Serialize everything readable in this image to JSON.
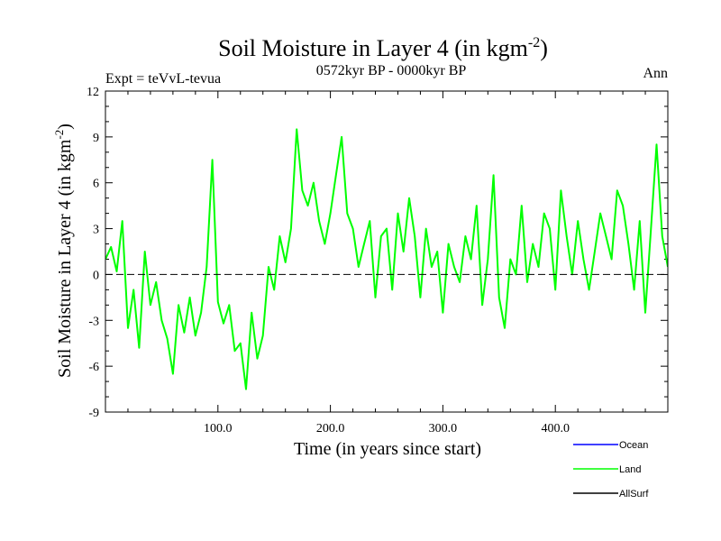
{
  "chart_data": {
    "type": "line",
    "title": "Soil Moisture in Layer 4 (in kgm",
    "title_superscript": "-2",
    "title_close": ")",
    "subtitle_left": "Expt = teVvL-tevua",
    "subtitle_center": "0572kyr BP - 0000kyr BP",
    "subtitle_right": "Ann",
    "xlabel": "Time (in years since start)",
    "ylabel": "Soil Moisture in Layer 4 (in kgm",
    "ylabel_superscript": "-2",
    "ylabel_close": ")",
    "xlim": [
      0,
      500
    ],
    "ylim": [
      -9,
      12
    ],
    "x_ticks": [
      100,
      200,
      300,
      400
    ],
    "x_tick_labels": [
      "100.0",
      "200.0",
      "300.0",
      "400.0"
    ],
    "y_ticks": [
      -9,
      -6,
      -3,
      0,
      3,
      6,
      9,
      12
    ],
    "y_tick_labels": [
      "-9",
      "-6",
      "-3",
      "0",
      "3",
      "6",
      "9",
      "12"
    ],
    "reference_line": 0,
    "legend": [
      {
        "name": "Ocean",
        "color": "#0000ff"
      },
      {
        "name": "Land",
        "color": "#00ff00"
      },
      {
        "name": "AllSurf",
        "color": "#000000"
      }
    ],
    "series": [
      {
        "name": "Land",
        "color": "#00ff00",
        "x": [
          0,
          5,
          10,
          15,
          20,
          25,
          30,
          35,
          40,
          45,
          50,
          55,
          60,
          65,
          70,
          75,
          80,
          85,
          90,
          95,
          100,
          105,
          110,
          115,
          120,
          125,
          130,
          135,
          140,
          145,
          150,
          155,
          160,
          165,
          170,
          175,
          180,
          185,
          190,
          195,
          200,
          205,
          210,
          215,
          220,
          225,
          230,
          235,
          240,
          245,
          250,
          255,
          260,
          265,
          270,
          275,
          280,
          285,
          290,
          295,
          300,
          305,
          310,
          315,
          320,
          325,
          330,
          335,
          340,
          345,
          350,
          355,
          360,
          365,
          370,
          375,
          380,
          385,
          390,
          395,
          400,
          405,
          410,
          415,
          420,
          425,
          430,
          435,
          440,
          445,
          450,
          455,
          460,
          465,
          470,
          475,
          480,
          485,
          490,
          495,
          500
        ],
        "values": [
          1.0,
          1.8,
          0.2,
          3.5,
          -3.5,
          -1.0,
          -4.8,
          1.5,
          -2.0,
          -0.5,
          -3.0,
          -4.2,
          -6.5,
          -2.0,
          -3.8,
          -1.5,
          -4.0,
          -2.5,
          0.5,
          7.5,
          -1.8,
          -3.2,
          -2.0,
          -5.0,
          -4.5,
          -7.5,
          -2.5,
          -5.5,
          -4.0,
          0.5,
          -1.0,
          2.5,
          0.8,
          3.0,
          9.5,
          5.5,
          4.5,
          6.0,
          3.5,
          2.0,
          4.0,
          6.5,
          9.0,
          4.0,
          3.0,
          0.5,
          2.0,
          3.5,
          -1.5,
          2.5,
          3.0,
          -1.0,
          4.0,
          1.5,
          5.0,
          2.5,
          -1.5,
          3.0,
          0.5,
          1.5,
          -2.5,
          2.0,
          0.5,
          -0.5,
          2.5,
          1.0,
          4.5,
          -2.0,
          1.0,
          6.5,
          -1.5,
          -3.5,
          1.0,
          0.0,
          4.5,
          -0.5,
          2.0,
          0.5,
          4.0,
          3.0,
          -1.0,
          5.5,
          2.5,
          0.0,
          3.5,
          1.0,
          -1.0,
          1.5,
          4.0,
          2.5,
          1.0,
          5.5,
          4.5,
          2.0,
          -1.0,
          3.5,
          -2.5,
          3.0,
          8.5,
          2.5,
          0.5
        ]
      }
    ]
  }
}
